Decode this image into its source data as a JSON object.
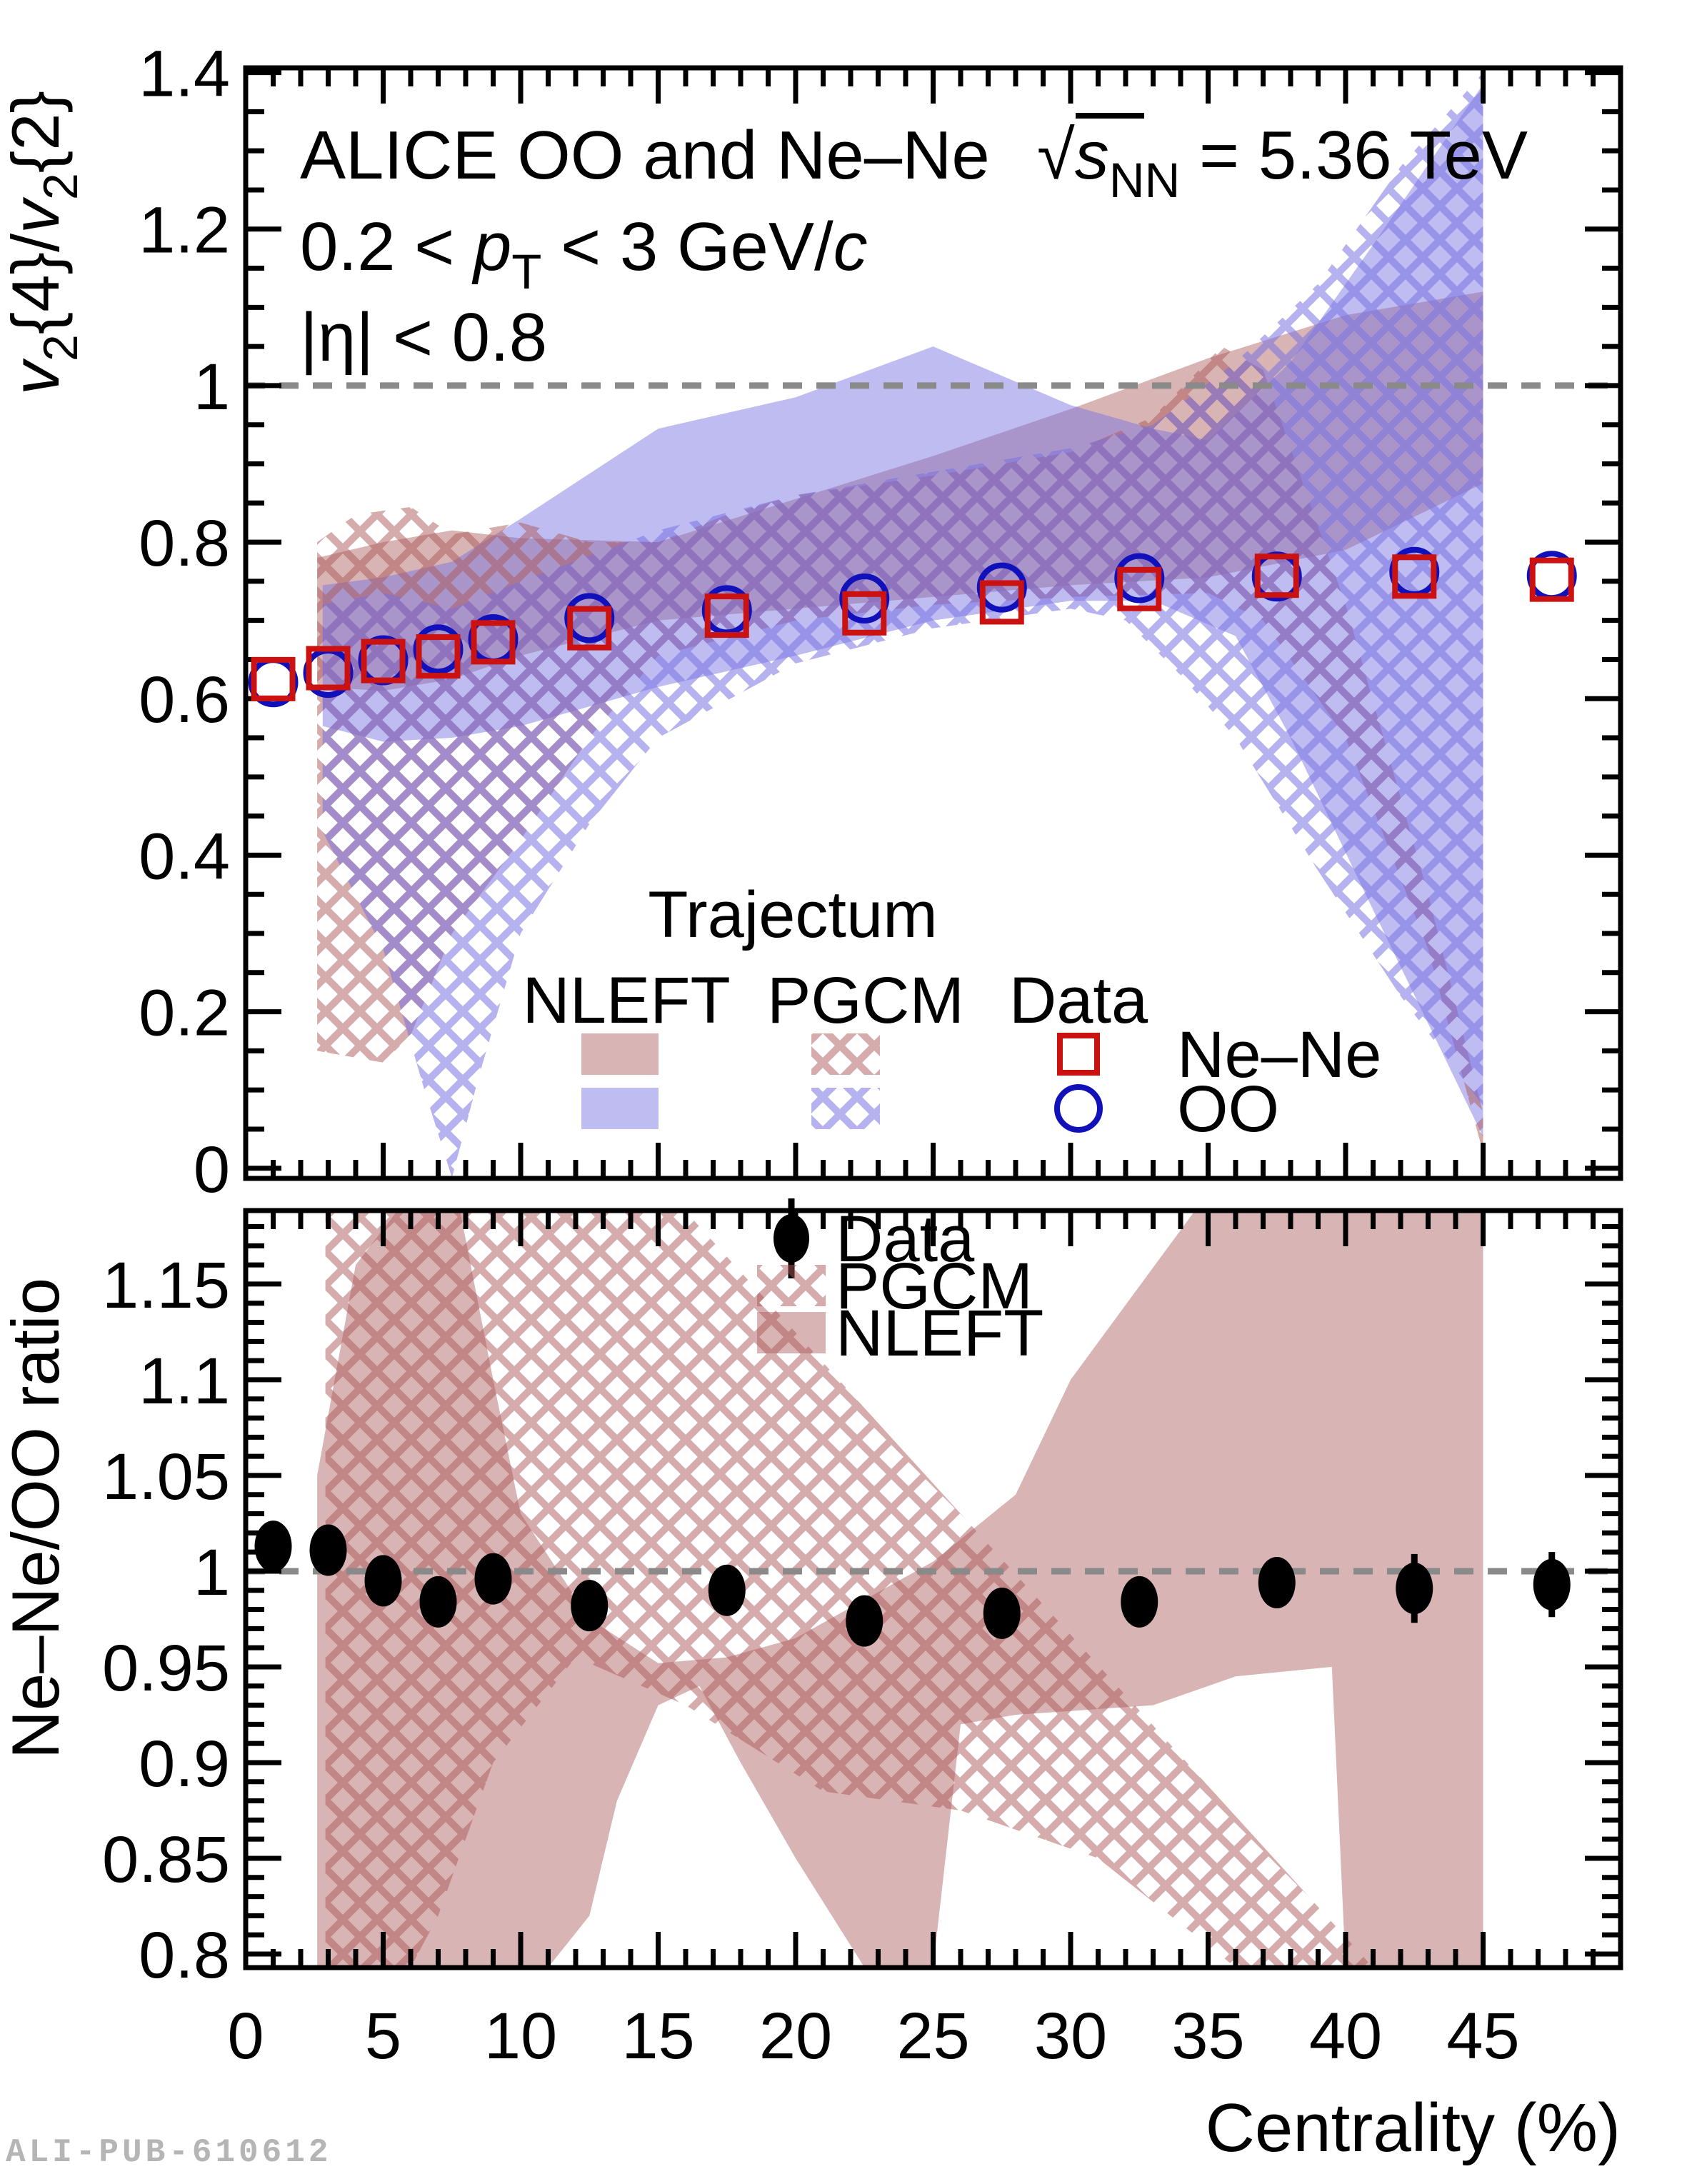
{
  "watermark": "ALI-PUB-610612",
  "colors": {
    "nene_band": "rgba(171,88,88,0.45)",
    "oo_band": "rgba(120,115,225,0.48)",
    "nene_hatch": "rgba(171,88,88,0.50)",
    "oo_hatch": "rgba(120,115,225,0.55)",
    "nene_marker": "#cc1111",
    "oo_marker": "#1111bb",
    "data_marker": "#000000",
    "ref_line": "#8a8a8a",
    "axis": "#000000",
    "watermark_color": "#b5b5b5"
  },
  "chart_data": [
    {
      "id": "top",
      "type": "scatter",
      "ylabel": "v2{4}/v2{2}",
      "ylabel_segments": [
        {
          "t": "v",
          "style": "i"
        },
        {
          "t": "2",
          "style": "sub"
        },
        {
          "t": "{4}/",
          "style": "n"
        },
        {
          "t": "v",
          "style": "i"
        },
        {
          "t": "2",
          "style": "sub"
        },
        {
          "t": "{2}",
          "style": "n"
        }
      ],
      "xlim": [
        0,
        50
      ],
      "ylim": [
        -0.013,
        1.406
      ],
      "xticks": [
        0,
        5,
        10,
        15,
        20,
        25,
        30,
        35,
        40,
        45
      ],
      "x_minor_step": 1,
      "yticks": [
        0,
        0.2,
        0.4,
        0.6,
        0.8,
        1,
        1.2,
        1.4
      ],
      "ytick_labels": [
        "0",
        "0.2",
        "0.4",
        "0.6",
        "0.8",
        "1",
        "1.2",
        "1.4"
      ],
      "y_minor_step": 0.05,
      "grid": false,
      "reference_line_y": 1,
      "annotations": {
        "line1_segments": [
          {
            "t": "ALICE OO and Ne–Ne",
            "style": "n"
          }
        ],
        "energy_segments": [
          {
            "t": "√",
            "style": "n"
          },
          {
            "t": "s",
            "style": "i"
          },
          {
            "t": "NN",
            "style": "sub"
          },
          {
            "t": " = 5.36 TeV",
            "style": "n"
          }
        ],
        "line2_segments": [
          {
            "t": "0.2 <  ",
            "style": "n"
          },
          {
            "t": "p",
            "style": "i"
          },
          {
            "t": "T",
            "style": "sub"
          },
          {
            "t": " < 3 GeV/",
            "style": "n"
          },
          {
            "t": "c",
            "style": "i"
          }
        ],
        "line3_segments": [
          {
            "t": "|η| < 0.8",
            "style": "n"
          }
        ]
      },
      "x": [
        1,
        3,
        5,
        7,
        9,
        12.5,
        17.5,
        22.5,
        27.5,
        32.5,
        37.5,
        42.5,
        47.5
      ],
      "series": [
        {
          "name": "Ne–Ne",
          "marker": "open-square",
          "color_key": "nene_marker",
          "values": [
            0.625,
            0.639,
            0.648,
            0.654,
            0.672,
            0.69,
            0.706,
            0.709,
            0.723,
            0.74,
            0.757,
            0.756,
            0.752
          ]
        },
        {
          "name": "OO",
          "marker": "open-circle",
          "color_key": "oo_marker",
          "values": [
            0.621,
            0.633,
            0.649,
            0.663,
            0.676,
            0.703,
            0.713,
            0.728,
            0.742,
            0.754,
            0.756,
            0.762,
            0.757
          ]
        }
      ],
      "bands": [
        {
          "name": "NLEFT Ne–Ne",
          "model": "NLEFT",
          "system": "Ne–Ne",
          "style": "solid",
          "color_key": "nene_band",
          "poly": [
            [
              2.6,
              0.78
            ],
            [
              5,
              0.8
            ],
            [
              7.5,
              0.815
            ],
            [
              10,
              0.805
            ],
            [
              15,
              0.8
            ],
            [
              20,
              0.855
            ],
            [
              25,
              0.91
            ],
            [
              30,
              0.97
            ],
            [
              35,
              1.035
            ],
            [
              40,
              1.09
            ],
            [
              45,
              1.12
            ],
            [
              45,
              0.875
            ],
            [
              40,
              0.79
            ],
            [
              35,
              0.755
            ],
            [
              30,
              0.745
            ],
            [
              25,
              0.73
            ],
            [
              20,
              0.715
            ],
            [
              15,
              0.7
            ],
            [
              10,
              0.655
            ],
            [
              7.5,
              0.625
            ],
            [
              5,
              0.61
            ],
            [
              2.6,
              0.615
            ]
          ]
        },
        {
          "name": "NLEFT OO",
          "model": "NLEFT",
          "system": "OO",
          "style": "solid",
          "color_key": "oo_band",
          "poly": [
            [
              2.8,
              0.745
            ],
            [
              5,
              0.755
            ],
            [
              7.5,
              0.775
            ],
            [
              10,
              0.83
            ],
            [
              15,
              0.945
            ],
            [
              20,
              0.985
            ],
            [
              25,
              1.05
            ],
            [
              30,
              0.975
            ],
            [
              33,
              0.945
            ],
            [
              35,
              0.93
            ],
            [
              38,
              1.03
            ],
            [
              41,
              1.18
            ],
            [
              45,
              1.385
            ],
            [
              45,
              0.04
            ],
            [
              41,
              0.33
            ],
            [
              38,
              0.55
            ],
            [
              36,
              0.68
            ],
            [
              33,
              0.725
            ],
            [
              30,
              0.725
            ],
            [
              25,
              0.7
            ],
            [
              20,
              0.655
            ],
            [
              15,
              0.615
            ],
            [
              10,
              0.565
            ],
            [
              7.5,
              0.55
            ],
            [
              5,
              0.545
            ],
            [
              2.8,
              0.565
            ]
          ]
        },
        {
          "name": "PGCM Ne–Ne",
          "model": "PGCM",
          "system": "Ne–Ne",
          "style": "hatch",
          "color_key": "nene_hatch",
          "poly": [
            [
              2.6,
              0.8
            ],
            [
              4,
              0.835
            ],
            [
              6,
              0.845
            ],
            [
              7.5,
              0.81
            ],
            [
              10,
              0.825
            ],
            [
              12.5,
              0.8
            ],
            [
              15,
              0.8
            ],
            [
              17.5,
              0.835
            ],
            [
              20,
              0.86
            ],
            [
              25,
              0.885
            ],
            [
              30,
              0.915
            ],
            [
              33,
              0.96
            ],
            [
              35.5,
              1.05
            ],
            [
              37,
              1.02
            ],
            [
              40,
              0.72
            ],
            [
              43,
              0.35
            ],
            [
              45,
              0.07
            ],
            [
              45,
              0.02
            ],
            [
              43,
              0.28
            ],
            [
              40,
              0.55
            ],
            [
              37,
              0.7
            ],
            [
              35,
              0.735
            ],
            [
              30,
              0.73
            ],
            [
              25,
              0.72
            ],
            [
              20,
              0.7
            ],
            [
              15,
              0.655
            ],
            [
              12.5,
              0.55
            ],
            [
              10,
              0.42
            ],
            [
              7.5,
              0.3
            ],
            [
              6,
              0.17
            ],
            [
              5,
              0.135
            ],
            [
              2.6,
              0.15
            ]
          ]
        },
        {
          "name": "PGCM OO",
          "model": "PGCM",
          "system": "OO",
          "style": "hatch",
          "color_key": "oo_hatch",
          "poly": [
            [
              2.8,
              0.72
            ],
            [
              5,
              0.735
            ],
            [
              7.5,
              0.715
            ],
            [
              10,
              0.75
            ],
            [
              15,
              0.815
            ],
            [
              20,
              0.86
            ],
            [
              25,
              0.89
            ],
            [
              30,
              0.92
            ],
            [
              33,
              0.95
            ],
            [
              36,
              1.03
            ],
            [
              39,
              1.13
            ],
            [
              42,
              1.28
            ],
            [
              45,
              1.4
            ],
            [
              45,
              0.08
            ],
            [
              42,
              0.22
            ],
            [
              39,
              0.38
            ],
            [
              36,
              0.55
            ],
            [
              34,
              0.63
            ],
            [
              32,
              0.7
            ],
            [
              30,
              0.715
            ],
            [
              25,
              0.69
            ],
            [
              20,
              0.645
            ],
            [
              15,
              0.55
            ],
            [
              12.5,
              0.44
            ],
            [
              10,
              0.3
            ],
            [
              8.5,
              0.12
            ],
            [
              7.5,
              -0.012
            ],
            [
              6.5,
              0.1
            ],
            [
              5,
              0.28
            ],
            [
              2.8,
              0.43
            ]
          ]
        }
      ],
      "legend": {
        "header": "Trajectum",
        "columns": [
          "NLEFT",
          "PGCM",
          "Data"
        ],
        "rows": [
          "Ne–Ne",
          "OO"
        ]
      }
    },
    {
      "id": "bottom",
      "type": "scatter",
      "ylabel": "Ne–Ne/OO ratio",
      "ylabel_segments": [
        {
          "t": "Ne–Ne/OO ratio",
          "style": "n"
        }
      ],
      "xlabel": "Centrality (%)",
      "xlim": [
        0,
        50
      ],
      "ylim": [
        0.7929,
        1.1884
      ],
      "xticks": [
        0,
        5,
        10,
        15,
        20,
        25,
        30,
        35,
        40,
        45
      ],
      "xtick_labels": [
        "0",
        "5",
        "10",
        "15",
        "20",
        "25",
        "30",
        "35",
        "40",
        "45"
      ],
      "x_minor_step": 1,
      "yticks": [
        0.8,
        0.85,
        0.9,
        0.95,
        1,
        1.05,
        1.1,
        1.15
      ],
      "ytick_labels": [
        "0.8",
        "0.85",
        "0.9",
        "0.95",
        "1",
        "1.05",
        "1.1",
        "1.15"
      ],
      "y_minor_step": 0.01,
      "grid": false,
      "reference_line_y": 1,
      "x": [
        1,
        3,
        5,
        7,
        9,
        12.5,
        17.5,
        22.5,
        27.5,
        32.5,
        37.5,
        42.5,
        47.5
      ],
      "series": [
        {
          "name": "Data",
          "marker": "filled-circle",
          "color_key": "data_marker",
          "values": [
            1.013,
            1.011,
            0.995,
            0.984,
            0.996,
            0.982,
            0.99,
            0.974,
            0.978,
            0.984,
            0.994,
            0.991,
            0.993
          ],
          "errors": [
            0.012,
            0.013,
            0.013,
            0.012,
            0.008,
            0.01,
            0.01,
            0.01,
            0.01,
            0.01,
            0.013,
            0.018,
            0.017
          ]
        }
      ],
      "bands": [
        {
          "name": "NLEFT",
          "model": "NLEFT",
          "style": "solid",
          "color_key": "nene_band",
          "poly": [
            [
              2.6,
              1.05
            ],
            [
              4,
              1.16
            ],
            [
              5.5,
              1.188
            ],
            [
              7.8,
              1.188
            ],
            [
              9,
              1.1
            ],
            [
              10,
              1.03
            ],
            [
              12.5,
              0.975
            ],
            [
              15,
              0.952
            ],
            [
              17.5,
              0.955
            ],
            [
              20,
              0.965
            ],
            [
              25,
              1.005
            ],
            [
              28,
              1.04
            ],
            [
              30,
              1.1
            ],
            [
              34.5,
              1.188
            ],
            [
              45,
              1.188
            ],
            [
              45,
              0.793
            ],
            [
              40,
              0.793
            ],
            [
              39.5,
              0.95
            ],
            [
              36,
              0.945
            ],
            [
              33,
              0.93
            ],
            [
              28,
              0.925
            ],
            [
              26,
              0.92
            ],
            [
              25,
              0.793
            ],
            [
              22.5,
              0.793
            ],
            [
              20,
              0.85
            ],
            [
              18,
              0.9
            ],
            [
              16.5,
              0.94
            ],
            [
              15,
              0.93
            ],
            [
              13.5,
              0.88
            ],
            [
              12.5,
              0.82
            ],
            [
              11,
              0.793
            ],
            [
              2.6,
              0.793
            ]
          ]
        },
        {
          "name": "PGCM",
          "model": "PGCM",
          "style": "hatch",
          "color_key": "nene_hatch",
          "poly": [
            [
              2.9,
              0.793
            ],
            [
              2.9,
              1.188
            ],
            [
              16,
              1.188
            ],
            [
              41,
              0.793
            ],
            [
              36,
              0.793
            ],
            [
              31,
              0.85
            ],
            [
              26,
              0.875
            ],
            [
              21,
              0.885
            ],
            [
              16,
              0.93
            ],
            [
              12,
              0.955
            ],
            [
              9,
              0.9
            ],
            [
              7,
              0.82
            ],
            [
              6,
              0.793
            ]
          ]
        }
      ],
      "legend": {
        "entries": [
          {
            "label": "Data",
            "swatch": "marker"
          },
          {
            "label": "PGCM",
            "swatch": "hatch"
          },
          {
            "label": "NLEFT",
            "swatch": "solid"
          }
        ]
      }
    }
  ]
}
